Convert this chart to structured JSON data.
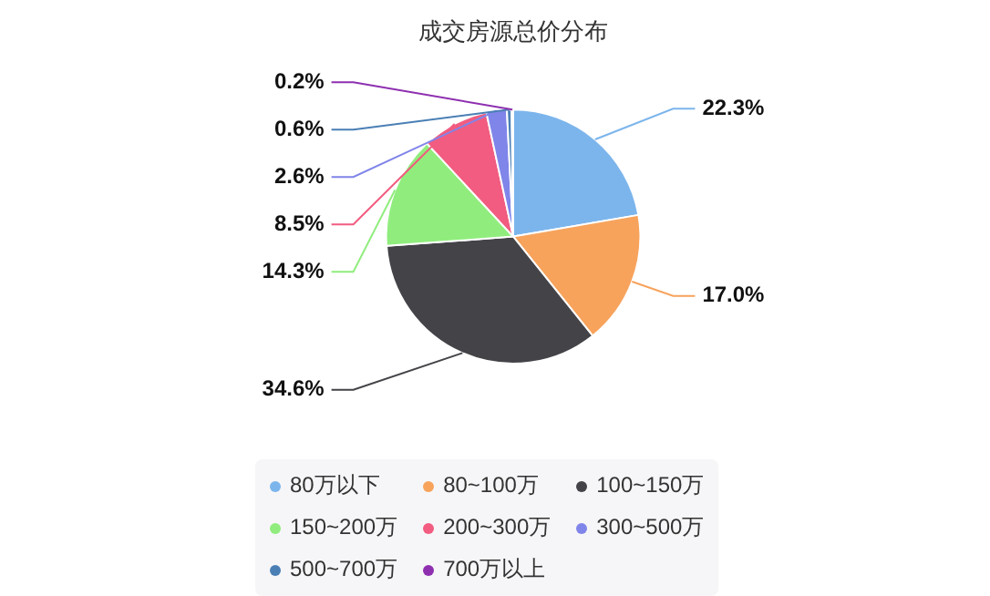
{
  "chart_data": {
    "type": "pie",
    "title": "成交房源总价分布",
    "categories": [
      "80万以下",
      "80~100万",
      "100~150万",
      "150~200万",
      "200~300万",
      "300~500万",
      "500~700万",
      "700万以上"
    ],
    "values": [
      22.3,
      17.0,
      34.6,
      14.3,
      8.5,
      2.6,
      0.6,
      0.2
    ],
    "colors": [
      "#7cb5ec",
      "#f7a35c",
      "#434348",
      "#90ed7d",
      "#f15c80",
      "#8085e9",
      "#4a7fb5",
      "#8e2fb0"
    ],
    "value_labels": [
      "22.3%",
      "17.0%",
      "34.6%",
      "14.3%",
      "8.5%",
      "2.6%",
      "0.6%",
      "0.2%"
    ],
    "legend": "bottom"
  }
}
